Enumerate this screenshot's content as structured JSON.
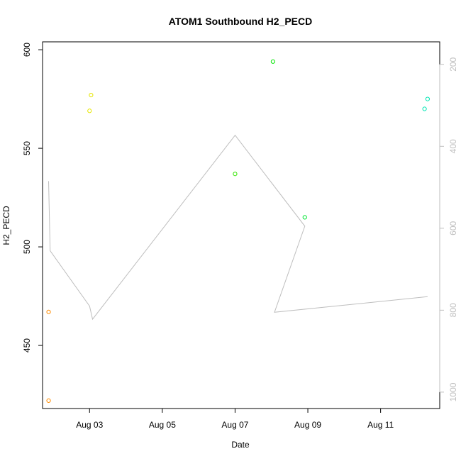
{
  "chart_data": {
    "type": "scatter",
    "title": "ATOM1 Southbound H2_PECD",
    "xlabel": "Date",
    "ylabel": "H2_PECD",
    "xlim": [
      "2022-08-01T17:00",
      "2022-08-12T15:00"
    ],
    "ylim": [
      418,
      604
    ],
    "x_ticks": [
      {
        "value": "2022-08-03",
        "label": "Aug 03"
      },
      {
        "value": "2022-08-05",
        "label": "Aug 05"
      },
      {
        "value": "2022-08-07",
        "label": "Aug 07"
      },
      {
        "value": "2022-08-09",
        "label": "Aug 09"
      },
      {
        "value": "2022-08-11",
        "label": "Aug 11"
      }
    ],
    "y_ticks": [
      450,
      500,
      550,
      600
    ],
    "y2lim": [
      1040,
      145
    ],
    "y2_ticks": [
      200,
      400,
      600,
      800,
      1000
    ],
    "grid": false,
    "legend": "none",
    "points": [
      {
        "x": "2022-08-01T21:00",
        "y": 467,
        "color": "#FF8C00"
      },
      {
        "x": "2022-08-01T21:00",
        "y": 422,
        "color": "#FF8C00"
      },
      {
        "x": "2022-08-03T00:00",
        "y": 569,
        "color": "#E6E600"
      },
      {
        "x": "2022-08-03T01:00",
        "y": 577,
        "color": "#E6E600"
      },
      {
        "x": "2022-08-07T00:00",
        "y": 537,
        "color": "#33E600"
      },
      {
        "x": "2022-08-08T01:00",
        "y": 594,
        "color": "#00E600"
      },
      {
        "x": "2022-08-08T22:00",
        "y": 515,
        "color": "#00E633"
      },
      {
        "x": "2022-08-12T05:00",
        "y": 570,
        "color": "#00E6B3"
      },
      {
        "x": "2022-08-12T07:00",
        "y": 575,
        "color": "#00E6B3"
      }
    ],
    "line_series": {
      "axis": "right",
      "color": "#BEBEBE",
      "points": [
        {
          "x": "2022-08-01T21:00",
          "y": 485
        },
        {
          "x": "2022-08-01T22:00",
          "y": 655
        },
        {
          "x": "2022-08-03T00:00",
          "y": 790
        },
        {
          "x": "2022-08-03T02:00",
          "y": 822
        },
        {
          "x": "2022-08-07T00:00",
          "y": 373
        },
        {
          "x": "2022-08-08T22:00",
          "y": 595
        },
        {
          "x": "2022-08-08T02:00",
          "y": 805
        },
        {
          "x": "2022-08-12T07:00",
          "y": 767
        }
      ]
    }
  }
}
